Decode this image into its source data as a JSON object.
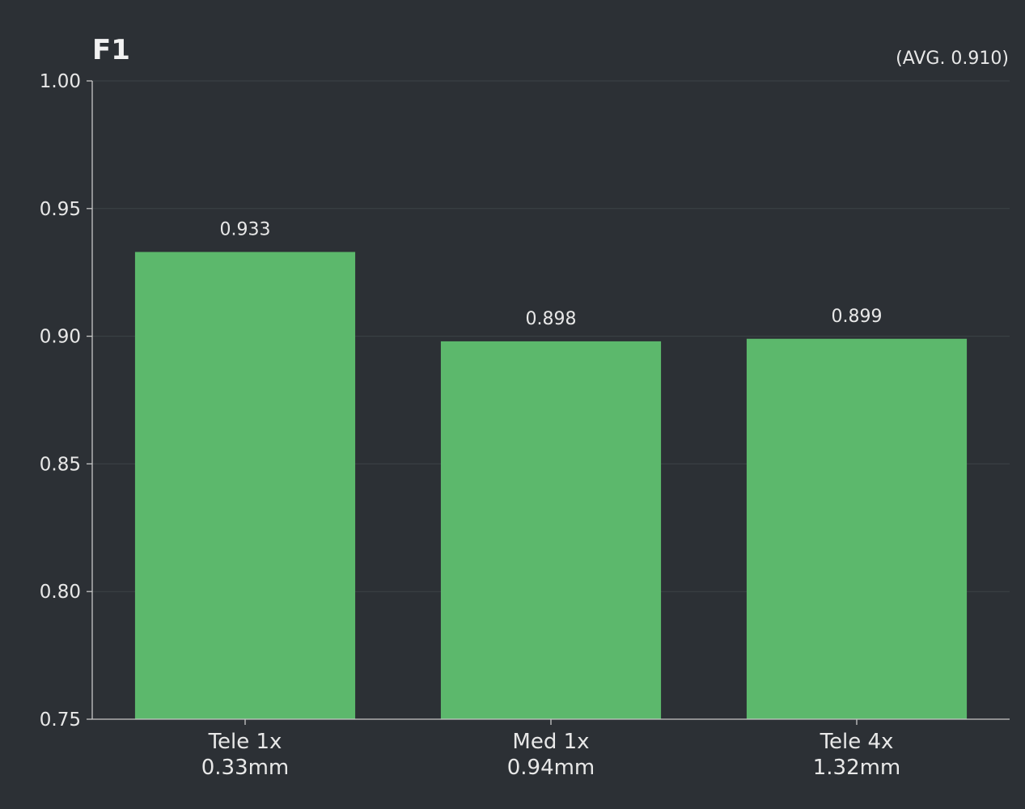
{
  "chart_data": {
    "type": "bar",
    "title": "F1",
    "annotation": "(AVG. 0.910)",
    "categories": [
      [
        "Tele 1x",
        "0.33mm"
      ],
      [
        "Med 1x",
        "0.94mm"
      ],
      [
        "Tele 4x",
        "1.32mm"
      ]
    ],
    "values": [
      0.933,
      0.898,
      0.899
    ],
    "data_labels": [
      "0.933",
      "0.898",
      "0.899"
    ],
    "yticks": [
      "0.75",
      "0.80",
      "0.85",
      "0.90",
      "0.95",
      "1.00"
    ],
    "ylim": [
      0.75,
      1.0
    ],
    "xlabel": "",
    "ylabel": "",
    "grid": true,
    "bar_color": "#5cb86c",
    "background_color": "#2c3035"
  }
}
